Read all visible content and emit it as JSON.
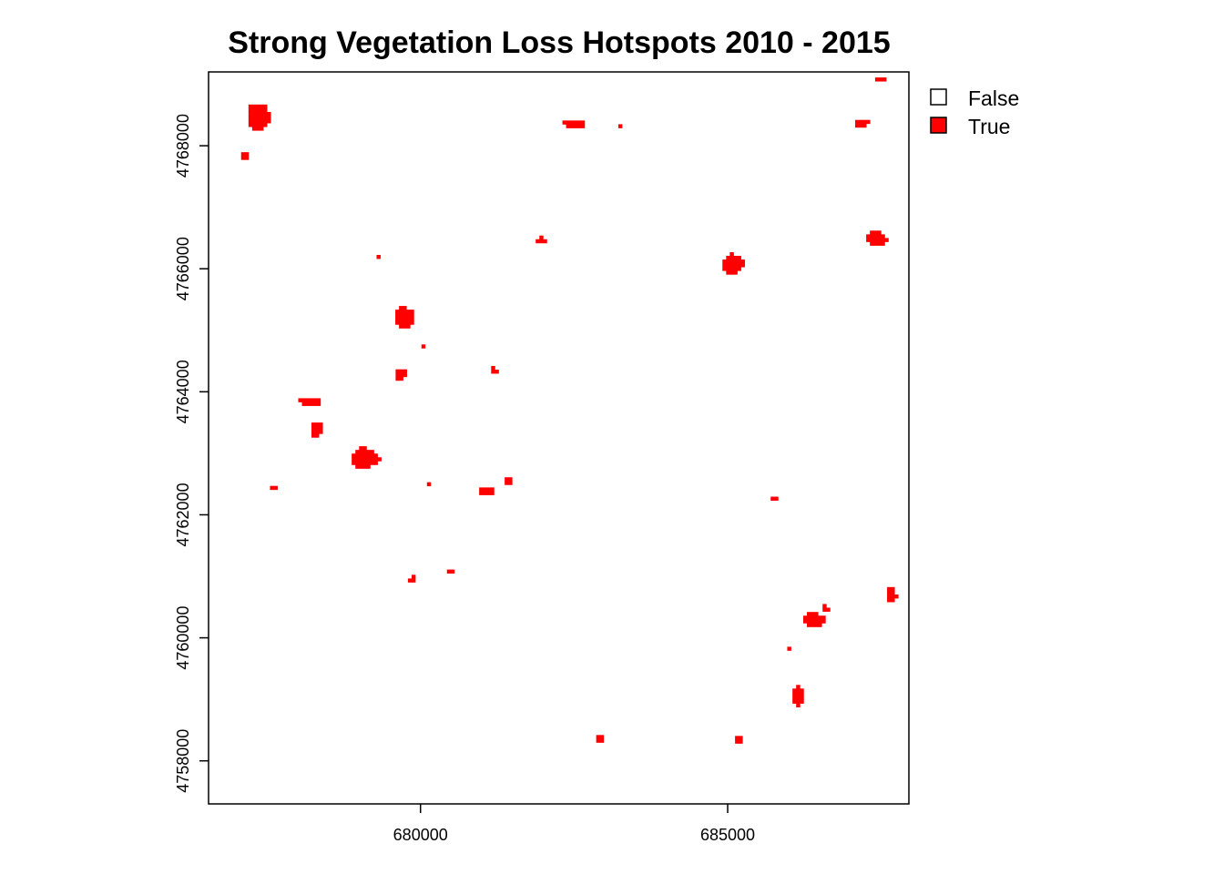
{
  "chart_data": {
    "type": "raster",
    "title": "Strong Vegetation Loss Hotspots 2010 - 2015",
    "xlabel": "",
    "ylabel": "",
    "xlim": [
      676550,
      687950
    ],
    "ylim": [
      4757300,
      4769200
    ],
    "x_ticks": [
      {
        "value": 680000,
        "label": "680000"
      },
      {
        "value": 685000,
        "label": "685000"
      }
    ],
    "y_ticks": [
      {
        "value": 4758000,
        "label": "4758000"
      },
      {
        "value": 4760000,
        "label": "4760000"
      },
      {
        "value": 4762000,
        "label": "4762000"
      },
      {
        "value": 4764000,
        "label": "4764000"
      },
      {
        "value": 4766000,
        "label": "4766000"
      },
      {
        "value": 4768000,
        "label": "4768000"
      }
    ],
    "legend": {
      "placement": "top-right",
      "entries": [
        {
          "label": "False",
          "color": "#ffffff"
        },
        {
          "label": "True",
          "color": "#ff0000"
        }
      ]
    },
    "hotspots": [
      {
        "x": 677370,
        "y": 4768480,
        "w": 340,
        "h": 460
      },
      {
        "x": 677150,
        "y": 4767850,
        "w": 140,
        "h": 150
      },
      {
        "x": 682490,
        "y": 4768360,
        "w": 360,
        "h": 140
      },
      {
        "x": 683250,
        "y": 4768320,
        "w": 60,
        "h": 60
      },
      {
        "x": 687180,
        "y": 4768370,
        "w": 210,
        "h": 140
      },
      {
        "x": 687480,
        "y": 4769080,
        "w": 160,
        "h": 60
      },
      {
        "x": 681960,
        "y": 4766470,
        "w": 170,
        "h": 100
      },
      {
        "x": 687420,
        "y": 4766490,
        "w": 330,
        "h": 220
      },
      {
        "x": 685080,
        "y": 4766070,
        "w": 330,
        "h": 320
      },
      {
        "x": 679330,
        "y": 4766210,
        "w": 90,
        "h": 90
      },
      {
        "x": 679740,
        "y": 4765200,
        "w": 300,
        "h": 330
      },
      {
        "x": 680040,
        "y": 4764740,
        "w": 50,
        "h": 60
      },
      {
        "x": 681200,
        "y": 4764350,
        "w": 100,
        "h": 100
      },
      {
        "x": 679680,
        "y": 4764280,
        "w": 170,
        "h": 190
      },
      {
        "x": 678210,
        "y": 4763840,
        "w": 400,
        "h": 130
      },
      {
        "x": 678310,
        "y": 4763380,
        "w": 170,
        "h": 240
      },
      {
        "x": 679100,
        "y": 4762920,
        "w": 440,
        "h": 330
      },
      {
        "x": 677600,
        "y": 4762430,
        "w": 100,
        "h": 40
      },
      {
        "x": 680130,
        "y": 4762500,
        "w": 50,
        "h": 60
      },
      {
        "x": 681070,
        "y": 4762390,
        "w": 230,
        "h": 130
      },
      {
        "x": 681440,
        "y": 4762540,
        "w": 140,
        "h": 100
      },
      {
        "x": 685770,
        "y": 4762280,
        "w": 140,
        "h": 90
      },
      {
        "x": 679860,
        "y": 4760950,
        "w": 130,
        "h": 90
      },
      {
        "x": 680480,
        "y": 4761090,
        "w": 100,
        "h": 80
      },
      {
        "x": 686410,
        "y": 4760290,
        "w": 360,
        "h": 220
      },
      {
        "x": 686590,
        "y": 4760480,
        "w": 90,
        "h": 100
      },
      {
        "x": 687670,
        "y": 4760700,
        "w": 150,
        "h": 230
      },
      {
        "x": 686000,
        "y": 4759820,
        "w": 60,
        "h": 50
      },
      {
        "x": 686140,
        "y": 4759050,
        "w": 170,
        "h": 350
      },
      {
        "x": 682940,
        "y": 4758360,
        "w": 160,
        "h": 120
      },
      {
        "x": 685180,
        "y": 4758360,
        "w": 120,
        "h": 150
      }
    ]
  }
}
